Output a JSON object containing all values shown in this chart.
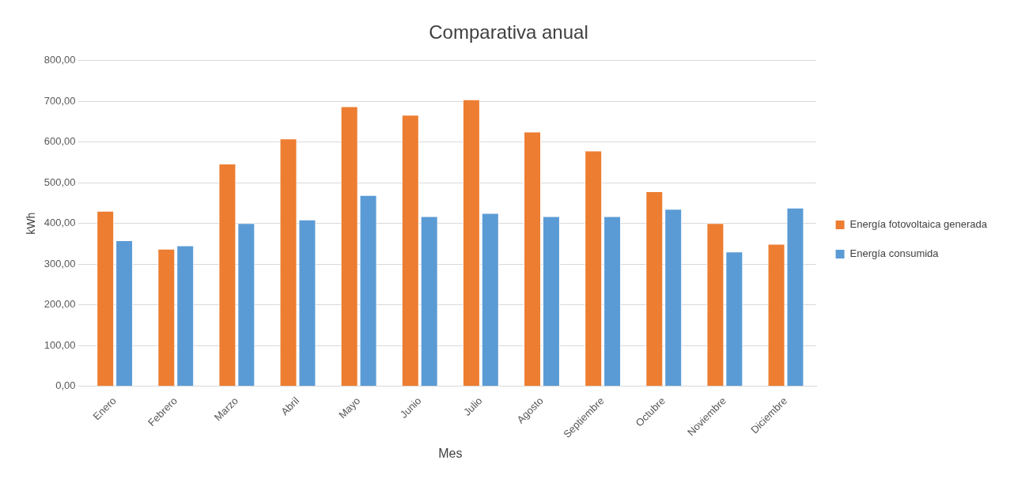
{
  "chart_data": {
    "type": "bar",
    "title": "Comparativa anual",
    "xlabel": "Mes",
    "ylabel": "kWh",
    "categories": [
      "Enero",
      "Febrero",
      "Marzo",
      "Abril",
      "Mayo",
      "Junio",
      "Julio",
      "Agosto",
      "Septiembre",
      "Octubre",
      "Noviembre",
      "Diciembre"
    ],
    "series": [
      {
        "name": "Energía fotovoltaica generada",
        "color": "#ed7d31",
        "values": [
          431,
          338,
          547,
          609,
          688,
          667,
          705,
          626,
          579,
          479,
          401,
          350
        ]
      },
      {
        "name": "Energía consumida",
        "color": "#5b9bd5",
        "values": [
          359,
          346,
          401,
          410,
          470,
          418,
          426,
          418,
          418,
          436,
          331,
          439
        ]
      }
    ],
    "ylim": [
      0,
      800
    ],
    "yticks": [
      {
        "value": 0,
        "label": "0,00"
      },
      {
        "value": 100,
        "label": "100,00"
      },
      {
        "value": 200,
        "label": "200,00"
      },
      {
        "value": 300,
        "label": "300,00"
      },
      {
        "value": 400,
        "label": "400,00"
      },
      {
        "value": 500,
        "label": "500,00"
      },
      {
        "value": 600,
        "label": "600,00"
      },
      {
        "value": 700,
        "label": "700,00"
      },
      {
        "value": 800,
        "label": "800,00"
      }
    ],
    "grid": "y",
    "legend": "right"
  }
}
